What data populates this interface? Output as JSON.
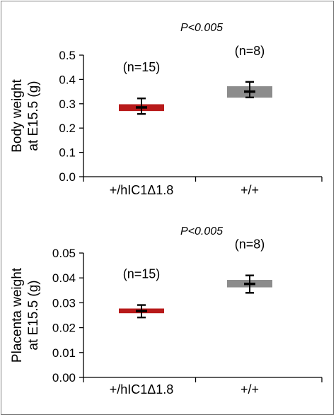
{
  "chart_data": [
    {
      "type": "box",
      "title": "",
      "annotation": "P<0.005",
      "ylabel_lines": [
        "Body weight",
        "at E15.5 (g)"
      ],
      "xlabel": "",
      "categories": [
        "+/hIC1Δ1.8",
        "+/+"
      ],
      "ylim": [
        0,
        0.5
      ],
      "yticks": [
        0.0,
        0.1,
        0.2,
        0.3,
        0.4,
        0.5
      ],
      "ytick_labels": [
        "0.0",
        "0.1",
        "0.2",
        "0.3",
        "0.4",
        "0.5"
      ],
      "grid": false,
      "series": [
        {
          "category": "+/hIC1Δ1.8",
          "n_label": "(n=15)",
          "mean": 0.285,
          "box_low": 0.27,
          "box_high": 0.298,
          "whisker_low": 0.258,
          "whisker_high": 0.322,
          "color": "#b81a1a"
        },
        {
          "category": "+/+",
          "n_label": "(n=8)",
          "mean": 0.35,
          "box_low": 0.325,
          "box_high": 0.372,
          "whisker_low": 0.326,
          "whisker_high": 0.39,
          "color": "#8c8c8c"
        }
      ]
    },
    {
      "type": "box",
      "title": "",
      "annotation": "P<0.005",
      "ylabel_lines": [
        "Placenta weight",
        "at E15.5 (g)"
      ],
      "xlabel": "",
      "categories": [
        "+/hIC1Δ1.8",
        "+/+"
      ],
      "ylim": [
        0,
        0.05
      ],
      "yticks": [
        0.0,
        0.01,
        0.02,
        0.03,
        0.04,
        0.05
      ],
      "ytick_labels": [
        "0.00",
        "0.01",
        "0.02",
        "0.03",
        "0.04",
        "0.05"
      ],
      "grid": false,
      "series": [
        {
          "category": "+/hIC1Δ1.8",
          "n_label": "(n=15)",
          "mean": 0.0267,
          "box_low": 0.0258,
          "box_high": 0.0277,
          "whisker_low": 0.0241,
          "whisker_high": 0.0291,
          "color": "#b81a1a"
        },
        {
          "category": "+/+",
          "n_label": "(n=8)",
          "mean": 0.0376,
          "box_low": 0.0362,
          "box_high": 0.0392,
          "whisker_low": 0.034,
          "whisker_high": 0.041,
          "color": "#8c8c8c"
        }
      ]
    }
  ]
}
